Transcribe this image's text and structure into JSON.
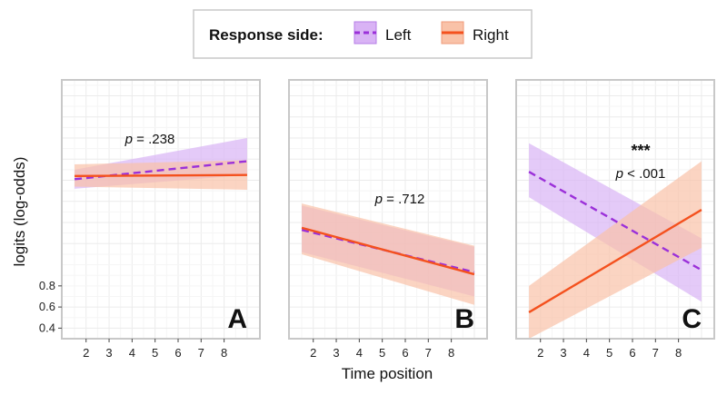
{
  "chart_data": {
    "type": "line",
    "xlabel": "Time position",
    "ylabel": "logits (log-odds)",
    "x_ticks": [
      2,
      3,
      4,
      5,
      6,
      7,
      8
    ],
    "xlim": [
      1.3,
      9.2
    ],
    "y_ticks": [
      0.4,
      0.6,
      0.8
    ],
    "y_tick_labels": [
      "0.4",
      "0.6",
      "0.8"
    ],
    "ylim": [
      0.3,
      2.75
    ],
    "grid": true,
    "legend": {
      "position": "top",
      "title": "Response side:",
      "entries": [
        {
          "label": "Left",
          "color": "#9b30d9",
          "fill": "#d9b3f5",
          "linestyle": "dashed"
        },
        {
          "label": "Right",
          "color": "#f4511e",
          "fill": "#f9c2a8",
          "linestyle": "solid"
        }
      ]
    },
    "panels": [
      {
        "label": "A",
        "annotation": {
          "p": "p",
          "text": " = .238",
          "stars": ""
        },
        "series": [
          {
            "name": "Left",
            "x": [
              1.5,
              9.0
            ],
            "y": [
              1.81,
              1.98
            ],
            "lower": [
              1.72,
              1.85
            ],
            "upper": [
              1.9,
              2.2
            ]
          },
          {
            "name": "Right",
            "x": [
              1.5,
              9.0
            ],
            "y": [
              1.84,
              1.85
            ],
            "lower": [
              1.74,
              1.71
            ],
            "upper": [
              1.95,
              1.99
            ]
          }
        ]
      },
      {
        "label": "B",
        "annotation": {
          "p": "p",
          "text": " = .712",
          "stars": ""
        },
        "series": [
          {
            "name": "Left",
            "x": [
              1.5,
              9.0
            ],
            "y": [
              1.33,
              0.93
            ],
            "lower": [
              1.12,
              0.7
            ],
            "upper": [
              1.56,
              1.17
            ]
          },
          {
            "name": "Right",
            "x": [
              1.5,
              9.0
            ],
            "y": [
              1.35,
              0.91
            ],
            "lower": [
              1.1,
              0.62
            ],
            "upper": [
              1.58,
              1.18
            ]
          }
        ]
      },
      {
        "label": "C",
        "annotation": {
          "p": "p",
          "text": " < .001",
          "stars": "***"
        },
        "series": [
          {
            "name": "Left",
            "x": [
              1.5,
              9.0
            ],
            "y": [
              1.88,
              0.95
            ],
            "lower": [
              1.64,
              0.65
            ],
            "upper": [
              2.15,
              1.25
            ]
          },
          {
            "name": "Right",
            "x": [
              1.5,
              9.0
            ],
            "y": [
              0.55,
              1.52
            ],
            "lower": [
              0.3,
              1.16
            ],
            "upper": [
              0.8,
              1.98
            ]
          }
        ]
      }
    ]
  }
}
